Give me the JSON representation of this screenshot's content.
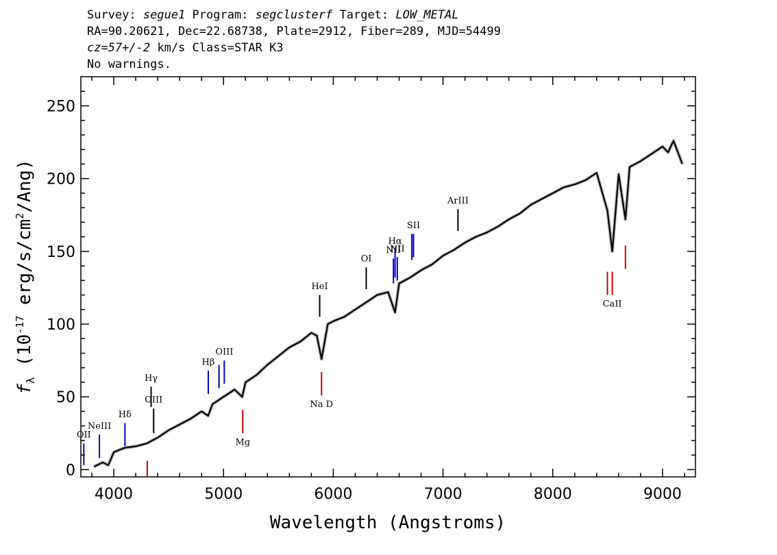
{
  "header": {
    "line1": {
      "survey_label": "Survey: ",
      "survey": "segue1",
      "program_label": " Program: ",
      "program": "segclusterf",
      "target_label": " Target: ",
      "target": "LOW_METAL"
    },
    "line2": "RA=90.20621, Dec=22.68738, Plate=2912, Fiber=289, MJD=54499",
    "line3": {
      "cz": "cz=57+/-2",
      "rest": " km/s Class=STAR K3"
    },
    "line4": "No warnings."
  },
  "chart_data": {
    "type": "line",
    "xlabel": "Wavelength (Angstroms)",
    "ylabel": "f_λ (10^-17 erg/s/cm^2/Ang)",
    "xlim": [
      3700,
      9300
    ],
    "ylim": [
      -5,
      270
    ],
    "x_ticks": [
      4000,
      5000,
      6000,
      7000,
      8000,
      9000
    ],
    "x_tick_labels": [
      "4000",
      "5000",
      "6000",
      "7000",
      "8000",
      "9000"
    ],
    "y_ticks": [
      0,
      50,
      100,
      150,
      200,
      250
    ],
    "y_tick_labels": [
      "0",
      "50",
      "100",
      "150",
      "200",
      "250"
    ],
    "grid": false,
    "series": [
      {
        "color": "#000000",
        "x": [
          3820,
          3900,
          3950,
          4000,
          4100,
          4200,
          4300,
          4350,
          4400,
          4500,
          4600,
          4700,
          4800,
          4860,
          4900,
          5000,
          5100,
          5170,
          5200,
          5300,
          5400,
          5500,
          5600,
          5700,
          5800,
          5850,
          5893,
          5950,
          6000,
          6100,
          6200,
          6300,
          6400,
          6500,
          6563,
          6600,
          6700,
          6800,
          6900,
          7000,
          7100,
          7200,
          7300,
          7400,
          7500,
          7600,
          7700,
          7800,
          7900,
          8000,
          8100,
          8200,
          8300,
          8400,
          8498,
          8542,
          8600,
          8662,
          8700,
          8800,
          8900,
          9000,
          9050,
          9100,
          9180
        ],
        "y": [
          2,
          5,
          3,
          12,
          15,
          16,
          18,
          20,
          22,
          27,
          31,
          35,
          40,
          37,
          45,
          50,
          55,
          50,
          60,
          65,
          72,
          78,
          84,
          88,
          94,
          92,
          76,
          100,
          102,
          105,
          110,
          115,
          120,
          122,
          108,
          128,
          132,
          137,
          141,
          147,
          151,
          156,
          160,
          163,
          167,
          172,
          176,
          182,
          186,
          190,
          194,
          196,
          199,
          204,
          178,
          150,
          203,
          172,
          208,
          212,
          217,
          222,
          218,
          226,
          210
        ]
      }
    ],
    "line_markers": [
      {
        "label": "OII",
        "wavelength": 3727,
        "color": "#0000cc",
        "y_bottom": 3,
        "y_top": 18,
        "label_y": 22
      },
      {
        "label": "NeIII",
        "wavelength": 3869,
        "color": "#0000cc",
        "y_bottom": 8,
        "y_top": 24,
        "label_y": 28
      },
      {
        "label": "Hδ",
        "wavelength": 4102,
        "color": "#0000cc",
        "y_bottom": 15,
        "y_top": 32,
        "label_y": 36
      },
      {
        "label": "",
        "wavelength": 4305,
        "color": "#cc0000",
        "y_bottom": -5,
        "y_top": 6,
        "label_y": 0
      },
      {
        "label": "Hγ",
        "wavelength": 4340,
        "color": "#000000",
        "y_bottom": 43,
        "y_top": 57,
        "label_y": 61
      },
      {
        "label": "OIII",
        "wavelength": 4363,
        "color": "#000000",
        "y_bottom": 25,
        "y_top": 42,
        "label_y": 46
      },
      {
        "label": "Hβ",
        "wavelength": 4861,
        "color": "#0000cc",
        "y_bottom": 52,
        "y_top": 68,
        "label_y": 72
      },
      {
        "label": "",
        "wavelength": 4959,
        "color": "#0000cc",
        "y_bottom": 56,
        "y_top": 72,
        "label_y": 0
      },
      {
        "label": "OIII",
        "wavelength": 5007,
        "color": "#0000cc",
        "y_bottom": 59,
        "y_top": 75,
        "label_y": 79
      },
      {
        "label": "Mg",
        "wavelength": 5175,
        "color": "#cc0000",
        "y_bottom": 25,
        "y_top": 41,
        "label_y": 17
      },
      {
        "label": "HeI",
        "wavelength": 5876,
        "color": "#000000",
        "y_bottom": 105,
        "y_top": 120,
        "label_y": 124
      },
      {
        "label": "Na D",
        "wavelength": 5893,
        "color": "#cc0000",
        "y_bottom": 51,
        "y_top": 67,
        "label_y": 43
      },
      {
        "label": "OI",
        "wavelength": 6300,
        "color": "#000000",
        "y_bottom": 124,
        "y_top": 139,
        "label_y": 143
      },
      {
        "label": "NII",
        "wavelength": 6548,
        "color": "#0000cc",
        "y_bottom": 128,
        "y_top": 145,
        "label_y": 149
      },
      {
        "label": "Hα",
        "wavelength": 6563,
        "color": "#0000cc",
        "y_bottom": 132,
        "y_top": 151,
        "label_y": 155
      },
      {
        "label": "NII",
        "wavelength": 6583,
        "color": "#0000cc",
        "y_bottom": 130,
        "y_top": 146,
        "label_y": 150
      },
      {
        "label": "",
        "wavelength": 6716,
        "color": "#0000cc",
        "y_bottom": 144,
        "y_top": 162,
        "label_y": 0
      },
      {
        "label": "SII",
        "wavelength": 6731,
        "color": "#0000cc",
        "y_bottom": 146,
        "y_top": 162,
        "label_y": 166
      },
      {
        "label": "ArIII",
        "wavelength": 7136,
        "color": "#000000",
        "y_bottom": 164,
        "y_top": 179,
        "label_y": 183
      },
      {
        "label": "",
        "wavelength": 8498,
        "color": "#cc0000",
        "y_bottom": 120,
        "y_top": 136,
        "label_y": 0
      },
      {
        "label": "CaII",
        "wavelength": 8542,
        "color": "#cc0000",
        "y_bottom": 120,
        "y_top": 136,
        "label_y": 112
      },
      {
        "label": "",
        "wavelength": 8662,
        "color": "#cc0000",
        "y_bottom": 138,
        "y_top": 154,
        "label_y": 0
      }
    ]
  }
}
